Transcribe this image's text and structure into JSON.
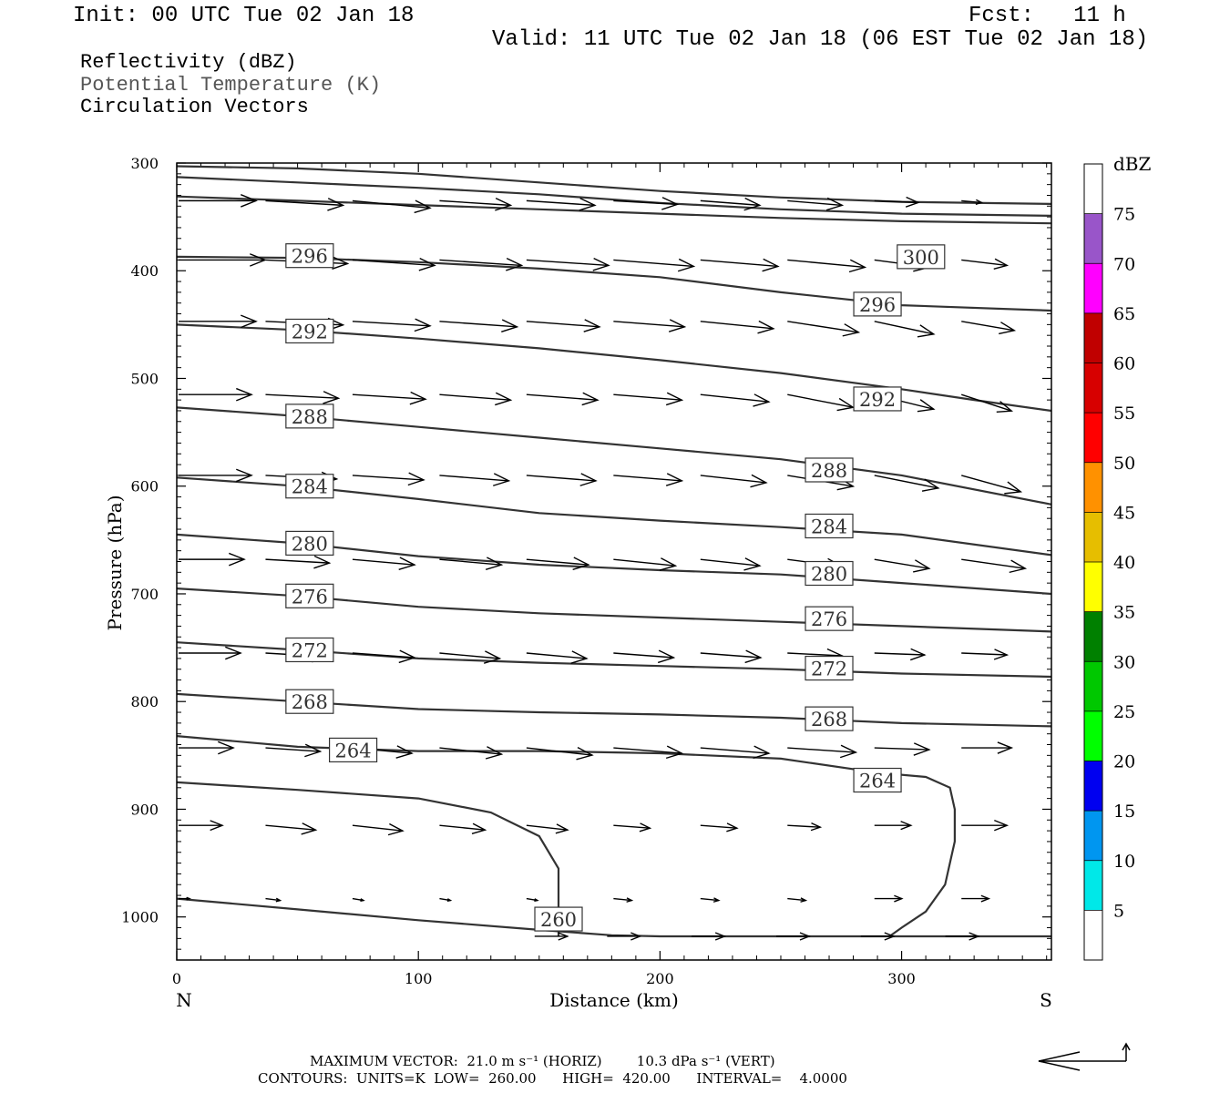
{
  "header": {
    "init": "Init: 00 UTC Tue 02 Jan 18",
    "fcst": "Fcst:   11 h",
    "valid": "Valid: 11 UTC Tue 02 Jan 18 (06 EST Tue 02 Jan 18)"
  },
  "legend": {
    "line1": "Reflectivity (dBZ)",
    "line2": "Potential Temperature (K)",
    "line3": "Circulation Vectors"
  },
  "footer": {
    "line1": "MAXIMUM VECTOR:  21.0 m s⁻¹ (HORIZ)        10.3 dPa s⁻¹ (VERT)",
    "line2": "CONTOURS:  UNITS=K  LOW=  260.00      HIGH=  420.00      INTERVAL=    4.0000"
  },
  "chart_data": {
    "type": "contour",
    "xlabel": "Distance (km)",
    "ylabel": "Pressure (hPa)",
    "xlim": [
      0,
      362
    ],
    "ylim": [
      1040,
      300
    ],
    "x_ticks": [
      "0",
      "100",
      "200",
      "300"
    ],
    "y_ticks": [
      "300",
      "400",
      "500",
      "600",
      "700",
      "800",
      "900",
      "1000"
    ],
    "x_left_end": "N",
    "x_right_end": "S",
    "colorbar": {
      "title": "dBZ",
      "labels": [
        "5",
        "10",
        "15",
        "20",
        "25",
        "30",
        "35",
        "40",
        "45",
        "50",
        "55",
        "60",
        "65",
        "70",
        "75"
      ],
      "colors": [
        "#ffffff",
        "#00e8e8",
        "#0096f0",
        "#0000f0",
        "#00ff00",
        "#00c800",
        "#008000",
        "#ffff00",
        "#e6be00",
        "#ff9100",
        "#ff0000",
        "#d70000",
        "#c00000",
        "#ff00ff",
        "#9955c9",
        "#ffffff"
      ]
    },
    "contours": [
      {
        "level": 300,
        "label": "300",
        "label_at": [
          308,
          387
        ],
        "points": [
          [
            0,
            303
          ],
          [
            50,
            305
          ],
          [
            100,
            310
          ],
          [
            150,
            318
          ],
          [
            200,
            326
          ],
          [
            250,
            332
          ],
          [
            300,
            336
          ],
          [
            362,
            338
          ]
        ]
      },
      {
        "level": null,
        "label": "",
        "points": [
          [
            0,
            313
          ],
          [
            50,
            318
          ],
          [
            100,
            323
          ],
          [
            150,
            329
          ],
          [
            200,
            337
          ],
          [
            250,
            343
          ],
          [
            300,
            347
          ],
          [
            362,
            349
          ]
        ]
      },
      {
        "level": null,
        "label": "",
        "points": [
          [
            0,
            331
          ],
          [
            50,
            335
          ],
          [
            100,
            339
          ],
          [
            150,
            343
          ],
          [
            200,
            347
          ],
          [
            250,
            351
          ],
          [
            300,
            354
          ],
          [
            362,
            356
          ]
        ]
      },
      {
        "level": 296,
        "label": "296",
        "label_at": [
          55,
          386
        ],
        "points": [
          [
            0,
            387
          ],
          [
            50,
            388
          ],
          [
            100,
            392
          ],
          [
            150,
            398
          ],
          [
            200,
            406
          ],
          [
            250,
            420
          ],
          [
            300,
            432
          ],
          [
            362,
            437
          ]
        ]
      },
      {
        "level": 296,
        "label": "296",
        "label_at": [
          290,
          431
        ],
        "points": []
      },
      {
        "level": 292,
        "label": "292",
        "label_at": [
          55,
          456
        ],
        "points": [
          [
            0,
            450
          ],
          [
            50,
            455
          ],
          [
            100,
            463
          ],
          [
            150,
            472
          ],
          [
            200,
            483
          ],
          [
            250,
            495
          ],
          [
            300,
            510
          ],
          [
            330,
            520
          ],
          [
            362,
            530
          ]
        ]
      },
      {
        "level": 292,
        "label": "292",
        "label_at": [
          290,
          519
        ],
        "points": []
      },
      {
        "level": 288,
        "label": "288",
        "label_at": [
          55,
          535
        ],
        "points": [
          [
            0,
            527
          ],
          [
            50,
            535
          ],
          [
            100,
            545
          ],
          [
            150,
            555
          ],
          [
            200,
            565
          ],
          [
            250,
            575
          ],
          [
            300,
            590
          ],
          [
            362,
            617
          ]
        ]
      },
      {
        "level": 288,
        "label": "288",
        "label_at": [
          270,
          585
        ],
        "points": []
      },
      {
        "level": 284,
        "label": "284",
        "label_at": [
          55,
          600
        ],
        "points": [
          [
            0,
            592
          ],
          [
            50,
            600
          ],
          [
            100,
            612
          ],
          [
            150,
            625
          ],
          [
            200,
            632
          ],
          [
            250,
            638
          ],
          [
            300,
            645
          ],
          [
            362,
            664
          ]
        ]
      },
      {
        "level": 284,
        "label": "284",
        "label_at": [
          270,
          637
        ],
        "points": []
      },
      {
        "level": 280,
        "label": "280",
        "label_at": [
          55,
          653
        ],
        "points": [
          [
            0,
            645
          ],
          [
            50,
            653
          ],
          [
            100,
            665
          ],
          [
            150,
            673
          ],
          [
            200,
            678
          ],
          [
            250,
            682
          ],
          [
            300,
            690
          ],
          [
            362,
            700
          ]
        ]
      },
      {
        "level": 280,
        "label": "280",
        "label_at": [
          270,
          681
        ],
        "points": []
      },
      {
        "level": 276,
        "label": "276",
        "label_at": [
          55,
          702
        ],
        "points": [
          [
            0,
            695
          ],
          [
            50,
            702
          ],
          [
            100,
            712
          ],
          [
            150,
            718
          ],
          [
            200,
            722
          ],
          [
            250,
            726
          ],
          [
            300,
            730
          ],
          [
            362,
            735
          ]
        ]
      },
      {
        "level": 276,
        "label": "276",
        "label_at": [
          270,
          723
        ],
        "points": []
      },
      {
        "level": 272,
        "label": "272",
        "label_at": [
          55,
          752
        ],
        "points": [
          [
            0,
            745
          ],
          [
            50,
            752
          ],
          [
            100,
            760
          ],
          [
            150,
            764
          ],
          [
            200,
            767
          ],
          [
            250,
            770
          ],
          [
            300,
            774
          ],
          [
            362,
            777
          ]
        ]
      },
      {
        "level": 272,
        "label": "272",
        "label_at": [
          270,
          769
        ],
        "points": []
      },
      {
        "level": 268,
        "label": "268",
        "label_at": [
          55,
          800
        ],
        "points": [
          [
            0,
            793
          ],
          [
            50,
            800
          ],
          [
            100,
            807
          ],
          [
            150,
            810
          ],
          [
            200,
            812
          ],
          [
            250,
            815
          ],
          [
            300,
            820
          ],
          [
            362,
            823
          ]
        ]
      },
      {
        "level": 268,
        "label": "268",
        "label_at": [
          270,
          816
        ],
        "points": []
      },
      {
        "level": 264,
        "label": "264",
        "label_at": [
          73,
          845
        ],
        "points": [
          [
            0,
            832
          ],
          [
            50,
            842
          ],
          [
            100,
            846
          ],
          [
            150,
            846
          ],
          [
            200,
            848
          ],
          [
            250,
            853
          ],
          [
            290,
            866
          ],
          [
            310,
            870
          ],
          [
            320,
            880
          ],
          [
            322,
            900
          ],
          [
            322,
            930
          ],
          [
            318,
            970
          ],
          [
            310,
            995
          ],
          [
            300,
            1010
          ],
          [
            295,
            1018
          ]
        ]
      },
      {
        "level": 264,
        "label": "264",
        "label_at": [
          290,
          873
        ],
        "points": []
      },
      {
        "level": 260,
        "label": "260",
        "label_at": [
          158,
          1002
        ],
        "points": [
          [
            0,
            875
          ],
          [
            50,
            882
          ],
          [
            100,
            890
          ],
          [
            130,
            903
          ],
          [
            150,
            925
          ],
          [
            158,
            955
          ],
          [
            158,
            1000
          ],
          [
            158,
            1018
          ]
        ]
      },
      {
        "level": null,
        "label": "",
        "points": [
          [
            0,
            983
          ],
          [
            50,
            993
          ],
          [
            100,
            1003
          ],
          [
            150,
            1012
          ],
          [
            180,
            1017
          ],
          [
            200,
            1018
          ],
          [
            250,
            1018
          ],
          [
            362,
            1018
          ]
        ]
      }
    ],
    "vectors_note": "Circulation vectors: mostly eastward (north to south), slight descent toward the south at mid levels"
  }
}
